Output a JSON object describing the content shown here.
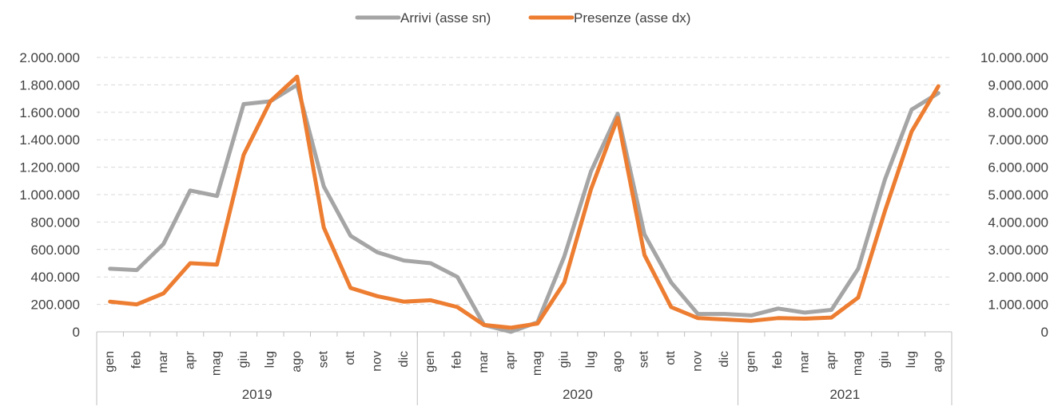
{
  "chart_data": {
    "type": "line",
    "legend_position": "top-center",
    "grid": true,
    "colors": {
      "arrivi": "#a5a5a5",
      "presenze": "#ed7d31",
      "grid": "#d9d9d9",
      "text": "#404040"
    },
    "groups": [
      {
        "year": "2019",
        "months": [
          "gen",
          "feb",
          "mar",
          "apr",
          "mag",
          "giu",
          "lug",
          "ago",
          "set",
          "ott",
          "nov",
          "dic"
        ]
      },
      {
        "year": "2020",
        "months": [
          "gen",
          "feb",
          "mar",
          "apr",
          "mag",
          "giu",
          "lug",
          "ago",
          "set",
          "ott",
          "nov",
          "dic"
        ]
      },
      {
        "year": "2021",
        "months": [
          "gen",
          "feb",
          "mar",
          "apr",
          "mag",
          "giu",
          "lug",
          "ago"
        ]
      }
    ],
    "y_left": {
      "min": 0,
      "max": 2000000,
      "step": 200000,
      "tick_labels": [
        "0",
        "200.000",
        "400.000",
        "600.000",
        "800.000",
        "1.000.000",
        "1.200.000",
        "1.400.000",
        "1.600.000",
        "1.800.000",
        "2.000.000"
      ]
    },
    "y_right": {
      "min": 0,
      "max": 10000000,
      "step": 1000000,
      "tick_labels": [
        "0",
        "1.000.000",
        "2.000.000",
        "3.000.000",
        "4.000.000",
        "5.000.000",
        "6.000.000",
        "7.000.000",
        "8.000.000",
        "9.000.000",
        "10.000.000"
      ]
    },
    "series": [
      {
        "name": "Arrivi (asse sn)",
        "axis": "left",
        "values": [
          460000,
          450000,
          640000,
          1030000,
          990000,
          1660000,
          1680000,
          1800000,
          1060000,
          700000,
          580000,
          520000,
          500000,
          400000,
          50000,
          0,
          70000,
          550000,
          1170000,
          1590000,
          710000,
          360000,
          130000,
          130000,
          120000,
          170000,
          140000,
          160000,
          460000,
          1110000,
          1620000,
          1740000
        ]
      },
      {
        "name": "Presenze (asse dx)",
        "axis": "right",
        "values": [
          1100000,
          1000000,
          1400000,
          2500000,
          2450000,
          6450000,
          8400000,
          9300000,
          3800000,
          1600000,
          1300000,
          1100000,
          1150000,
          900000,
          250000,
          150000,
          300000,
          1800000,
          5200000,
          7800000,
          2800000,
          900000,
          500000,
          450000,
          400000,
          500000,
          480000,
          520000,
          1250000,
          4400000,
          7300000,
          8950000
        ]
      }
    ]
  }
}
